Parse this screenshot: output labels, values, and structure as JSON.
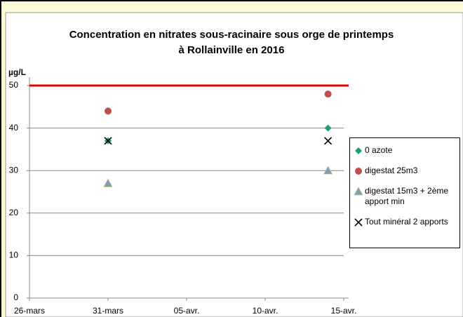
{
  "chart_data": {
    "type": "scatter",
    "title": "Concentration en nitrates sous-racinaire sous orge de printemps",
    "subtitle": "à Rollainville en 2016",
    "y_label": "µg/L",
    "x": [
      "03-31",
      "04-14"
    ],
    "series": [
      {
        "name": "0 azote",
        "color": "#1f9c7c",
        "marker": "diamond",
        "values": [
          37,
          40
        ]
      },
      {
        "name": "digestat 25m3",
        "color": "#c0504d",
        "marker": "circle",
        "values": [
          44,
          48
        ]
      },
      {
        "name": "digestat 15m3 + 2ème apport min",
        "color": "#7aa0c0",
        "marker": "triangle",
        "values": [
          27,
          30
        ]
      },
      {
        "name": "Tout minéral 2 apports",
        "color": "#000000",
        "marker": "x",
        "values": [
          37,
          37
        ]
      }
    ],
    "threshold": 50,
    "threshold_color": "#e00000",
    "xlim": [
      "03-26",
      "04-15"
    ],
    "xticks": [
      {
        "value": "03-26",
        "label": "26-mars"
      },
      {
        "value": "03-31",
        "label": "31-mars"
      },
      {
        "value": "04-05",
        "label": "05-avr."
      },
      {
        "value": "04-10",
        "label": "10-avr."
      },
      {
        "value": "04-15",
        "label": "15-avr."
      }
    ],
    "ylim": [
      0,
      50
    ],
    "yticks": [
      0,
      10,
      20,
      30,
      40,
      50
    ],
    "grid": true
  }
}
